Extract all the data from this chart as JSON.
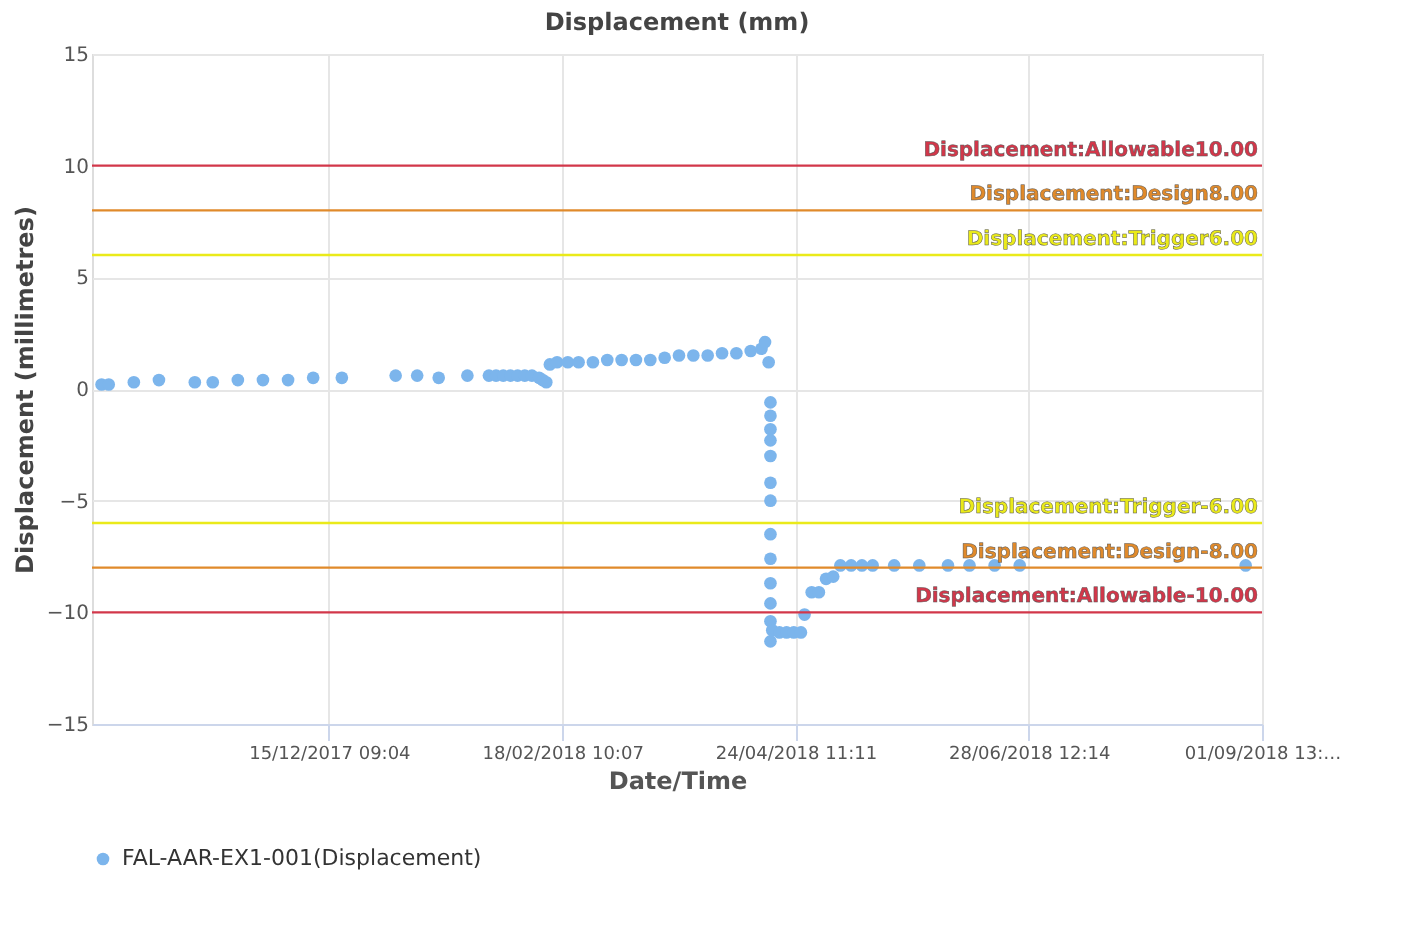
{
  "chart_data": {
    "type": "scatter",
    "title": "Displacement (mm)",
    "xlabel": "Date/Time",
    "ylabel": "Displacement (millimetres)",
    "xlim": [
      "2017-10-10T08:01",
      "2018-09-01T13:17"
    ],
    "xticks": [
      {
        "value": "2017-12-15T09:04",
        "label": "15/12/2017 09:04"
      },
      {
        "value": "2018-02-18T10:07",
        "label": "18/02/2018 10:07"
      },
      {
        "value": "2018-04-24T11:11",
        "label": "24/04/2018 11:11"
      },
      {
        "value": "2018-06-28T12:14",
        "label": "28/06/2018 12:14"
      },
      {
        "value": "2018-09-01T13:17",
        "label": "01/09/2018 13:…"
      }
    ],
    "ylim": [
      -15,
      15
    ],
    "yticks": [
      -15,
      -10,
      -5,
      0,
      5,
      10,
      15
    ],
    "grid": true,
    "legend": "bottom",
    "marker": "circle",
    "x": [
      "2017-10-13",
      "2017-10-15",
      "2017-10-22",
      "2017-10-29",
      "2017-11-08",
      "2017-11-13",
      "2017-11-20",
      "2017-11-27",
      "2017-12-04",
      "2017-12-11",
      "2017-12-19",
      "2018-01-03",
      "2018-01-09",
      "2018-01-15",
      "2018-01-23",
      "2018-01-29",
      "2018-01-31",
      "2018-02-02",
      "2018-02-04",
      "2018-02-06",
      "2018-02-08",
      "2018-02-10",
      "2018-02-12",
      "2018-02-13",
      "2018-02-14",
      "2018-02-15",
      "2018-02-17",
      "2018-02-20",
      "2018-02-23",
      "2018-02-27",
      "2018-03-03",
      "2018-03-07",
      "2018-03-11",
      "2018-03-15",
      "2018-03-19",
      "2018-03-23",
      "2018-03-27",
      "2018-03-31",
      "2018-04-04",
      "2018-04-08",
      "2018-04-12",
      "2018-04-15",
      "2018-04-16",
      "2018-04-17",
      "2018-04-17T12:00",
      "2018-04-17T12:00",
      "2018-04-17T12:00",
      "2018-04-17T12:00",
      "2018-04-17T12:00",
      "2018-04-17T12:00",
      "2018-04-17T12:00",
      "2018-04-17T12:00",
      "2018-04-17T12:00",
      "2018-04-17T12:00",
      "2018-04-17T12:00",
      "2018-04-17T12:00",
      "2018-04-17T12:00",
      "2018-04-18",
      "2018-04-20",
      "2018-04-22",
      "2018-04-24",
      "2018-04-26",
      "2018-04-27",
      "2018-04-29",
      "2018-05-01",
      "2018-05-03",
      "2018-05-05",
      "2018-05-07",
      "2018-05-10",
      "2018-05-13",
      "2018-05-16",
      "2018-05-22",
      "2018-05-29",
      "2018-06-06",
      "2018-06-12",
      "2018-06-19",
      "2018-06-26",
      "2018-08-28"
    ],
    "series": [
      {
        "name": "FAL-AAR-EX1-001(Displacement)",
        "color": "#7cb5ec",
        "values": [
          0.2,
          0.2,
          0.3,
          0.4,
          0.3,
          0.3,
          0.4,
          0.4,
          0.4,
          0.5,
          0.5,
          0.6,
          0.6,
          0.5,
          0.6,
          0.6,
          0.6,
          0.6,
          0.6,
          0.6,
          0.6,
          0.6,
          0.5,
          0.4,
          0.3,
          1.1,
          1.2,
          1.2,
          1.2,
          1.2,
          1.3,
          1.3,
          1.3,
          1.3,
          1.4,
          1.5,
          1.5,
          1.5,
          1.6,
          1.6,
          1.7,
          1.8,
          2.1,
          1.2,
          -0.6,
          -1.2,
          -1.8,
          -2.3,
          -3.0,
          -4.2,
          -5.0,
          -6.5,
          -7.6,
          -8.7,
          -9.6,
          -10.4,
          -11.3,
          -10.8,
          -10.9,
          -10.9,
          -10.9,
          -10.9,
          -10.1,
          -9.1,
          -9.1,
          -8.5,
          -8.4,
          -7.9,
          -7.9,
          -7.9,
          -7.9,
          -7.9,
          -7.9,
          -7.9,
          -7.9,
          -7.9,
          -7.9,
          -7.9
        ]
      }
    ],
    "ref_lines": [
      {
        "axis": "y",
        "value": 10,
        "label": "Displacement:Allowable10.00",
        "color": "#d2374a"
      },
      {
        "axis": "y",
        "value": 8,
        "label": "Displacement:Design8.00",
        "color": "#e08a2b"
      },
      {
        "axis": "y",
        "value": 6,
        "label": "Displacement:Trigger6.00",
        "color": "#eaea1a"
      },
      {
        "axis": "y",
        "value": -6,
        "label": "Displacement:Trigger-6.00",
        "color": "#eaea1a"
      },
      {
        "axis": "y",
        "value": -8,
        "label": "Displacement:Design-8.00",
        "color": "#e08a2b"
      },
      {
        "axis": "y",
        "value": -10,
        "label": "Displacement:Allowable-10.00",
        "color": "#d2374a"
      }
    ]
  }
}
